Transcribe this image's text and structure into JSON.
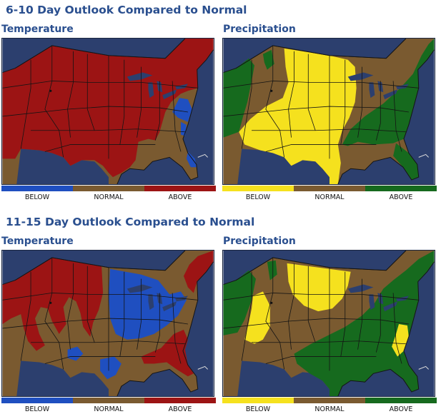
{
  "colors": {
    "ocean": "#2c3f6e",
    "normal": "#7a5a30",
    "temp_below": "#1f4fc0",
    "temp_above": "#9c1414",
    "precip_below": "#f5e11e",
    "precip_above": "#166a1e",
    "border_line": "#141414"
  },
  "sections": [
    {
      "title": "6-10 Day Outlook Compared to Normal",
      "panels": [
        {
          "label": "Temperature",
          "variable": "temperature",
          "legend": [
            "BELOW",
            "NORMAL",
            "ABOVE"
          ],
          "legend_colors": [
            "#1f4fc0",
            "#7a5a30",
            "#9c1414"
          ],
          "dominant_category": "ABOVE",
          "regions": [
            {
              "category": "ABOVE",
              "area": "West, Plains, Midwest, Northeast"
            },
            {
              "category": "BELOW",
              "area": "Ohio Valley / Appalachians, Southeast coast"
            },
            {
              "category": "NORMAL",
              "area": "Southeast, Texas coast"
            }
          ]
        },
        {
          "label": "Precipitation",
          "variable": "precipitation",
          "legend": [
            "BELOW",
            "NORMAL",
            "ABOVE"
          ],
          "legend_colors": [
            "#f5e11e",
            "#7a5a30",
            "#166a1e"
          ],
          "dominant_category": "BELOW",
          "regions": [
            {
              "category": "ABOVE",
              "area": "Pacific Northwest, Northern Rockies, East, Florida"
            },
            {
              "category": "BELOW",
              "area": "Southwest, Plains, Upper Midwest, Texas"
            },
            {
              "category": "NORMAL",
              "area": "California coast, Great Lakes, Gulf Coast"
            }
          ]
        }
      ]
    },
    {
      "title": "11-15 Day Outlook Compared to Normal",
      "panels": [
        {
          "label": "Temperature",
          "variable": "temperature",
          "legend": [
            "BELOW",
            "NORMAL",
            "ABOVE"
          ],
          "legend_colors": [
            "#1f4fc0",
            "#7a5a30",
            "#9c1414"
          ],
          "dominant_category": "NORMAL",
          "regions": [
            {
              "category": "ABOVE",
              "area": "Northwest, Northern Plains, Northeast, Southeast"
            },
            {
              "category": "BELOW",
              "area": "Midwest, Great Lakes, Arizona, South Texas"
            },
            {
              "category": "NORMAL",
              "area": "Central and Southern U.S."
            }
          ]
        },
        {
          "label": "Precipitation",
          "variable": "precipitation",
          "legend": [
            "BELOW",
            "NORMAL",
            "ABOVE"
          ],
          "legend_colors": [
            "#f5e11e",
            "#7a5a30",
            "#166a1e"
          ],
          "dominant_category": "ABOVE",
          "regions": [
            {
              "category": "ABOVE",
              "area": "Northwest, Southeast, Mid-Atlantic, Gulf Coast"
            },
            {
              "category": "BELOW",
              "area": "Great Basin, Northern Plains, Georgia / Carolinas coast"
            },
            {
              "category": "NORMAL",
              "area": "Central U.S., Rockies, Texas"
            }
          ]
        }
      ]
    }
  ]
}
